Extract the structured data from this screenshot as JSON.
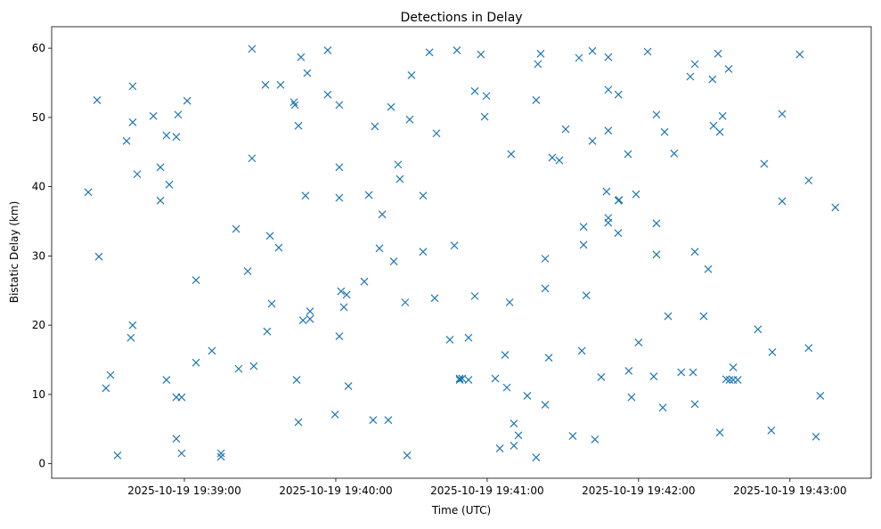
{
  "chart_data": {
    "type": "scatter",
    "title": "Detections in Delay",
    "xlabel": "Time (UTC)",
    "ylabel": "Bistatic Delay (km)",
    "x_unit": "seconds after 2025-10-19 19:38:00",
    "xlim": [
      7.4,
      332.2
    ],
    "ylim": [
      -2.1,
      63.1
    ],
    "xticks": [
      {
        "value": 60,
        "label": "2025-10-19 19:39:00"
      },
      {
        "value": 120,
        "label": "2025-10-19 19:40:00"
      },
      {
        "value": 180,
        "label": "2025-10-19 19:41:00"
      },
      {
        "value": 240,
        "label": "2025-10-19 19:42:00"
      },
      {
        "value": 300,
        "label": "2025-10-19 19:43:00"
      }
    ],
    "yticks": [
      {
        "value": 0,
        "label": "0"
      },
      {
        "value": 10,
        "label": "10"
      },
      {
        "value": 20,
        "label": "20"
      },
      {
        "value": 30,
        "label": "30"
      },
      {
        "value": 40,
        "label": "40"
      },
      {
        "value": 50,
        "label": "50"
      },
      {
        "value": 60,
        "label": "60"
      }
    ],
    "marker": "x",
    "color": "#1f77b4",
    "grid": false,
    "points": [
      [
        21.9,
        39.2
      ],
      [
        26.1,
        29.9
      ],
      [
        25.4,
        52.5
      ],
      [
        28.9,
        10.9
      ],
      [
        30.7,
        12.8
      ],
      [
        33.5,
        1.2
      ],
      [
        37.1,
        46.6
      ],
      [
        39.5,
        54.5
      ],
      [
        39.5,
        49.3
      ],
      [
        38.8,
        18.2
      ],
      [
        39.5,
        20.0
      ],
      [
        41.3,
        41.8
      ],
      [
        47.7,
        50.2
      ],
      [
        50.5,
        42.8
      ],
      [
        50.5,
        38.0
      ],
      [
        52.9,
        47.4
      ],
      [
        54.0,
        40.3
      ],
      [
        52.9,
        12.1
      ],
      [
        56.8,
        47.2
      ],
      [
        57.5,
        50.4
      ],
      [
        61.1,
        52.4
      ],
      [
        56.8,
        9.6
      ],
      [
        58.9,
        9.6
      ],
      [
        56.8,
        3.6
      ],
      [
        58.9,
        1.5
      ],
      [
        64.6,
        26.5
      ],
      [
        64.6,
        14.6
      ],
      [
        70.9,
        16.3
      ],
      [
        74.5,
        1.5
      ],
      [
        74.5,
        1.0
      ],
      [
        80.5,
        33.9
      ],
      [
        81.5,
        13.7
      ],
      [
        85.1,
        27.8
      ],
      [
        86.8,
        59.9
      ],
      [
        86.8,
        44.1
      ],
      [
        87.5,
        14.1
      ],
      [
        92.1,
        54.7
      ],
      [
        98.1,
        54.7
      ],
      [
        93.9,
        32.9
      ],
      [
        97.4,
        31.2
      ],
      [
        94.6,
        23.1
      ],
      [
        92.8,
        19.1
      ],
      [
        103.4,
        52.2
      ],
      [
        103.8,
        51.8
      ],
      [
        106.2,
        58.7
      ],
      [
        108.7,
        56.4
      ],
      [
        105.2,
        48.8
      ],
      [
        108.0,
        38.7
      ],
      [
        109.8,
        22.0
      ],
      [
        107.0,
        20.7
      ],
      [
        109.8,
        20.9
      ],
      [
        104.5,
        12.1
      ],
      [
        105.2,
        6.0
      ],
      [
        116.8,
        59.7
      ],
      [
        116.8,
        53.3
      ],
      [
        121.4,
        51.8
      ],
      [
        121.4,
        42.8
      ],
      [
        121.4,
        38.4
      ],
      [
        122.1,
        24.9
      ],
      [
        124.3,
        24.4
      ],
      [
        123.2,
        22.6
      ],
      [
        121.4,
        18.4
      ],
      [
        125.0,
        11.2
      ],
      [
        119.7,
        7.1
      ],
      [
        133.1,
        38.8
      ],
      [
        135.5,
        48.7
      ],
      [
        131.3,
        26.3
      ],
      [
        138.4,
        36.0
      ],
      [
        137.3,
        31.1
      ],
      [
        143.0,
        29.2
      ],
      [
        134.8,
        6.3
      ],
      [
        140.8,
        6.3
      ],
      [
        141.9,
        51.5
      ],
      [
        144.7,
        43.2
      ],
      [
        145.4,
        41.1
      ],
      [
        149.3,
        49.7
      ],
      [
        150.0,
        56.1
      ],
      [
        147.5,
        23.3
      ],
      [
        148.3,
        1.2
      ],
      [
        154.6,
        38.7
      ],
      [
        154.6,
        30.6
      ],
      [
        157.1,
        59.4
      ],
      [
        159.9,
        47.7
      ],
      [
        159.2,
        23.9
      ],
      [
        167.0,
        31.5
      ],
      [
        168.0,
        59.7
      ],
      [
        165.2,
        17.9
      ],
      [
        169.1,
        12.3
      ],
      [
        169.1,
        12.1
      ],
      [
        170.1,
        12.3
      ],
      [
        172.6,
        18.2
      ],
      [
        172.6,
        12.1
      ],
      [
        175.1,
        53.8
      ],
      [
        175.1,
        24.2
      ],
      [
        177.5,
        59.1
      ],
      [
        179.7,
        53.1
      ],
      [
        179.0,
        50.1
      ],
      [
        183.2,
        12.3
      ],
      [
        185.0,
        2.2
      ],
      [
        187.1,
        15.7
      ],
      [
        187.8,
        11.0
      ],
      [
        188.9,
        23.3
      ],
      [
        189.5,
        44.7
      ],
      [
        190.6,
        5.8
      ],
      [
        190.6,
        2.6
      ],
      [
        192.4,
        4.1
      ],
      [
        195.9,
        9.8
      ],
      [
        199.4,
        0.9
      ],
      [
        199.4,
        52.5
      ],
      [
        200.1,
        57.7
      ],
      [
        201.2,
        59.2
      ],
      [
        203.0,
        29.6
      ],
      [
        203.0,
        25.3
      ],
      [
        203.0,
        8.5
      ],
      [
        204.4,
        15.3
      ],
      [
        205.8,
        44.2
      ],
      [
        208.6,
        43.8
      ],
      [
        211.1,
        48.3
      ],
      [
        213.9,
        4.0
      ],
      [
        216.4,
        58.6
      ],
      [
        221.7,
        59.6
      ],
      [
        221.7,
        46.6
      ],
      [
        218.2,
        34.2
      ],
      [
        218.2,
        31.6
      ],
      [
        219.3,
        24.3
      ],
      [
        217.5,
        16.3
      ],
      [
        222.7,
        3.5
      ],
      [
        225.2,
        12.5
      ],
      [
        228.0,
        58.7
      ],
      [
        228.0,
        54.0
      ],
      [
        228.0,
        48.1
      ],
      [
        232.0,
        53.3
      ],
      [
        227.3,
        39.3
      ],
      [
        228.0,
        35.5
      ],
      [
        228.0,
        34.8
      ],
      [
        232.0,
        38.0
      ],
      [
        232.3,
        38.1
      ],
      [
        231.9,
        33.3
      ],
      [
        235.8,
        44.7
      ],
      [
        239.0,
        38.9
      ],
      [
        236.1,
        13.4
      ],
      [
        237.2,
        9.6
      ],
      [
        240.0,
        17.5
      ],
      [
        243.6,
        59.5
      ],
      [
        247.1,
        50.4
      ],
      [
        250.3,
        47.9
      ],
      [
        247.1,
        34.7
      ],
      [
        247.1,
        30.2
      ],
      [
        246.0,
        12.6
      ],
      [
        251.7,
        21.3
      ],
      [
        249.6,
        8.1
      ],
      [
        254.1,
        44.8
      ],
      [
        256.9,
        13.2
      ],
      [
        260.5,
        55.9
      ],
      [
        262.3,
        57.7
      ],
      [
        262.3,
        30.6
      ],
      [
        261.6,
        13.2
      ],
      [
        262.3,
        8.6
      ],
      [
        265.8,
        21.3
      ],
      [
        267.6,
        28.1
      ],
      [
        269.3,
        55.5
      ],
      [
        271.5,
        59.2
      ],
      [
        275.7,
        57.0
      ],
      [
        269.7,
        48.8
      ],
      [
        272.2,
        47.9
      ],
      [
        273.3,
        50.2
      ],
      [
        272.2,
        4.5
      ],
      [
        274.7,
        12.2
      ],
      [
        276.1,
        12.1
      ],
      [
        277.5,
        13.9
      ],
      [
        277.5,
        12.1
      ],
      [
        279.3,
        12.1
      ],
      [
        287.3,
        19.4
      ],
      [
        289.8,
        43.3
      ],
      [
        293.0,
        16.1
      ],
      [
        292.6,
        4.8
      ],
      [
        296.9,
        37.9
      ],
      [
        296.9,
        50.5
      ],
      [
        303.9,
        59.1
      ],
      [
        307.4,
        40.9
      ],
      [
        307.4,
        16.7
      ],
      [
        310.3,
        3.9
      ],
      [
        312.0,
        9.8
      ],
      [
        318.0,
        37.0
      ]
    ]
  }
}
